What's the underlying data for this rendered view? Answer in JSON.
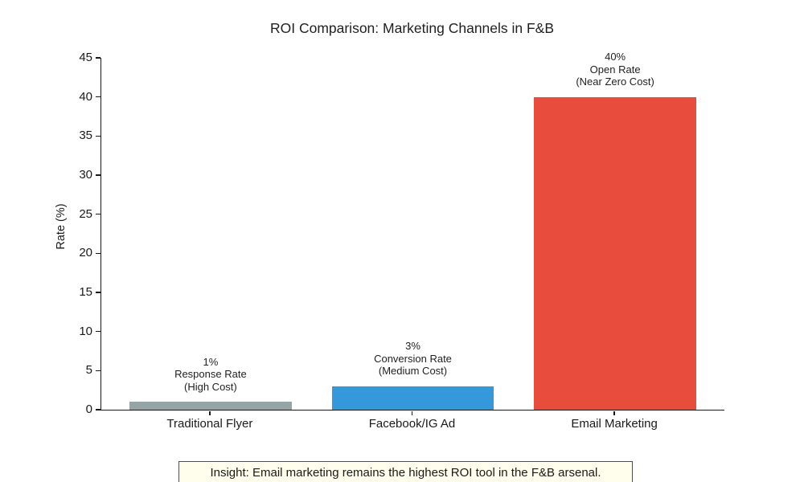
{
  "title": "ROI Comparison: Marketing Channels in F&B",
  "insight": "Insight: Email marketing remains the highest ROI tool in the F&B arsenal.",
  "colors": {
    "bar_gray": "#95a5a6",
    "bar_blue": "#3498db",
    "bar_red": "#e74c3c",
    "axis": "#1a1a1a",
    "text": "#1a1a1a",
    "insight_background": "#fffdec",
    "insight_border": "#4d4d4d"
  },
  "chart_data": {
    "type": "bar",
    "title": "ROI Comparison: Marketing Channels in F&B",
    "xlabel": "",
    "ylabel": "Rate (%)",
    "ylim": [
      0,
      45
    ],
    "yticks": [
      0,
      5,
      10,
      15,
      20,
      25,
      30,
      35,
      40,
      45
    ],
    "grid": false,
    "legend": false,
    "categories": [
      "Traditional Flyer",
      "Facebook/IG Ad",
      "Email Marketing"
    ],
    "values": [
      1,
      3,
      40
    ],
    "bar_colors": [
      "#95a5a6",
      "#3498db",
      "#e74c3c"
    ],
    "annotations": [
      {
        "lines": [
          "1%",
          "Response Rate",
          "(High Cost)"
        ]
      },
      {
        "lines": [
          "3%",
          "Conversion Rate",
          "(Medium Cost)"
        ]
      },
      {
        "lines": [
          "40%",
          "Open Rate",
          "(Near Zero Cost)"
        ]
      }
    ]
  }
}
